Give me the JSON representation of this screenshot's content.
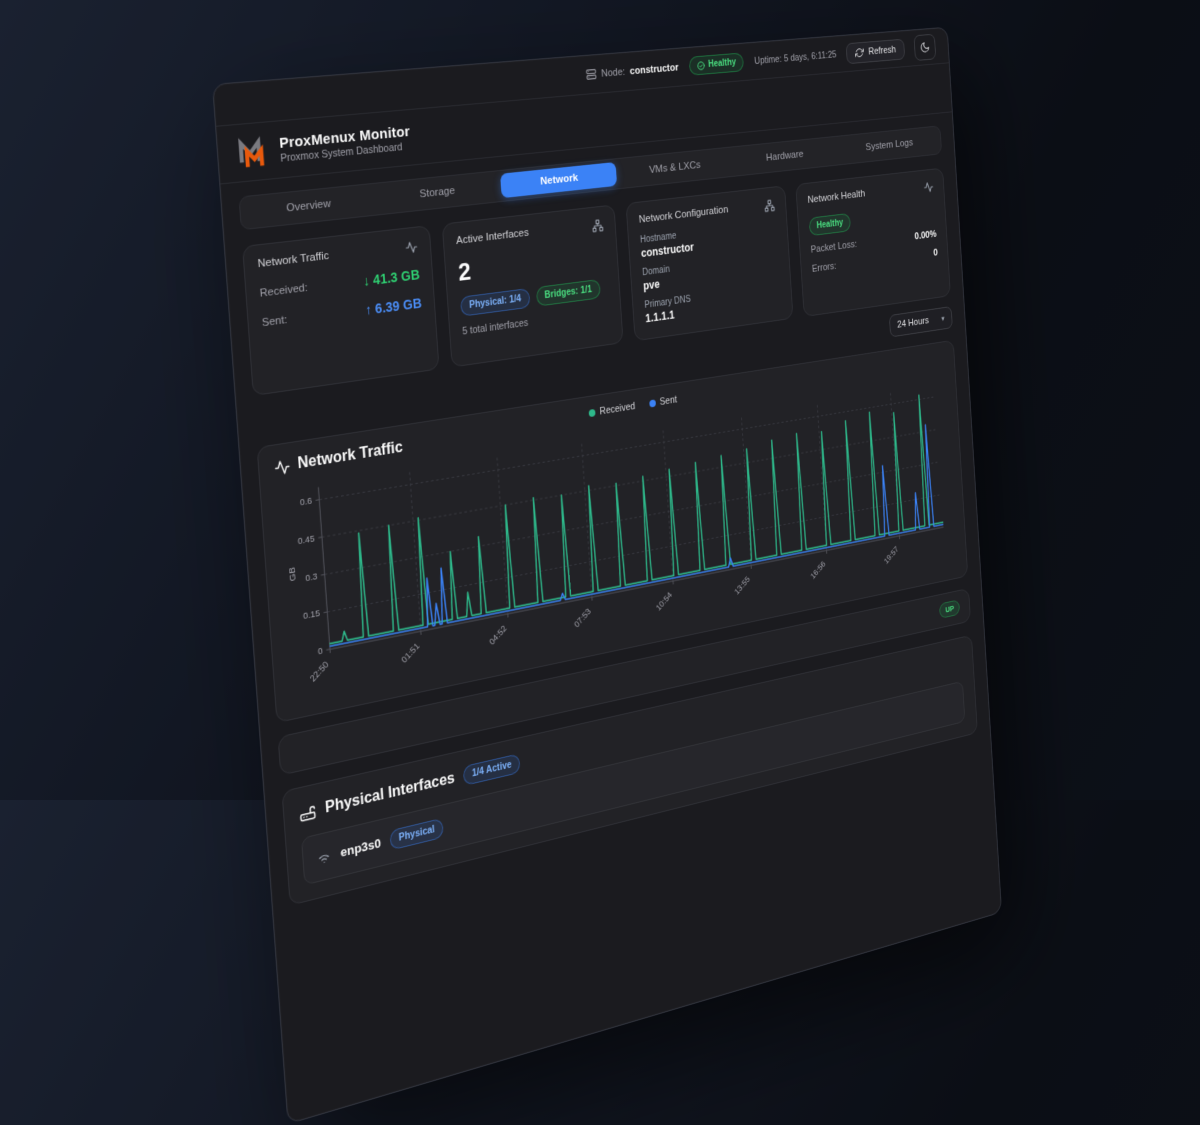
{
  "topbar": {
    "node_label": "Node:",
    "node_value": "constructor",
    "health_badge": "Healthy",
    "uptime": "Uptime: 5 days, 6:11:25",
    "refresh_label": "Refresh",
    "chevron": "▾"
  },
  "brand": {
    "title": "ProxMenux Monitor",
    "subtitle": "Proxmox System Dashboard"
  },
  "tabs": [
    {
      "label": "Overview",
      "active": false
    },
    {
      "label": "Storage",
      "active": false
    },
    {
      "label": "Network",
      "active": true
    },
    {
      "label": "VMs & LXCs",
      "active": false
    },
    {
      "label": "Hardware",
      "active": false
    },
    {
      "label": "System Logs",
      "active": false
    }
  ],
  "cards": {
    "traffic": {
      "title": "Network Traffic",
      "rows": [
        {
          "label": "Received:",
          "value": "↓ 41.3 GB",
          "color": "green"
        },
        {
          "label": "Sent:",
          "value": "↑ 6.39 GB",
          "color": "blue"
        }
      ]
    },
    "interfaces": {
      "title": "Active Interfaces",
      "count": "2",
      "badges": [
        {
          "label": "Physical: 1/4",
          "color": "blue"
        },
        {
          "label": "Bridges: 1/1",
          "color": "green"
        }
      ],
      "caption": "5 total interfaces"
    },
    "config": {
      "title": "Network Configuration",
      "fields": [
        {
          "label": "Hostname",
          "value": "constructor"
        },
        {
          "label": "Domain",
          "value": "pve"
        },
        {
          "label": "Primary DNS",
          "value": "1.1.1.1"
        }
      ]
    },
    "health": {
      "title": "Network Health",
      "badge": "Healthy",
      "rows": [
        {
          "label": "Packet Loss:",
          "value": "0.00%"
        },
        {
          "label": "Errors:",
          "value": "0"
        }
      ]
    }
  },
  "range_select": {
    "value": "24 Hours"
  },
  "chart_data": {
    "type": "line",
    "title": "Network Traffic",
    "ylabel": "GB",
    "ylim": [
      0,
      0.65
    ],
    "yticks": [
      0,
      0.15,
      0.3,
      0.45,
      0.6
    ],
    "xlim": [
      0,
      23
    ],
    "xtick_labels": [
      "22:50",
      "01:51",
      "04:52",
      "07:53",
      "10:54",
      "13:55",
      "16:56",
      "19:57"
    ],
    "xtick_pos": [
      0,
      3.02,
      6.03,
      9.05,
      12.07,
      15.08,
      18.1,
      21.12
    ],
    "grid": "dashed",
    "legend_position": "top-center",
    "series": [
      {
        "name": "Received",
        "color": "#2eb88a",
        "baseline_gb": 0.022,
        "spikes": [
          [
            0.5,
            0.06
          ],
          [
            1.2,
            0.44
          ],
          [
            2.2,
            0.45
          ],
          [
            3.2,
            0.46
          ],
          [
            4.2,
            0.3
          ],
          [
            4.7,
            0.12
          ],
          [
            5.2,
            0.34
          ],
          [
            6.2,
            0.45
          ],
          [
            7.2,
            0.46
          ],
          [
            8.2,
            0.45
          ],
          [
            9.2,
            0.47
          ],
          [
            10.2,
            0.46
          ],
          [
            11.2,
            0.47
          ],
          [
            12.2,
            0.48
          ],
          [
            13.2,
            0.49
          ],
          [
            14.2,
            0.5
          ],
          [
            15.2,
            0.51
          ],
          [
            16.2,
            0.53
          ],
          [
            17.2,
            0.54
          ],
          [
            18.2,
            0.53
          ],
          [
            19.2,
            0.56
          ],
          [
            20.2,
            0.58
          ],
          [
            21.2,
            0.56
          ],
          [
            22.3,
            0.62
          ]
        ]
      },
      {
        "name": "Sent",
        "color": "#3b82f6",
        "baseline_gb": 0.012,
        "spikes": [
          [
            3.35,
            0.21
          ],
          [
            3.6,
            0.1
          ],
          [
            3.85,
            0.24
          ],
          [
            8.0,
            0.04
          ],
          [
            14.3,
            0.05
          ],
          [
            20.6,
            0.33
          ],
          [
            21.9,
            0.18
          ],
          [
            22.5,
            0.48
          ]
        ]
      }
    ]
  },
  "status_strip": {
    "badge": "UP"
  },
  "physical": {
    "title": "Physical Interfaces",
    "badge": "1/4 Active",
    "rows": [
      {
        "name": "enp3s0",
        "badge": "Physical"
      }
    ]
  },
  "colors": {
    "accent_blue": "#3b82f6",
    "green": "#22c55e",
    "received_line": "#2eb88a",
    "sent_line": "#3b82f6",
    "logo_orange": "#e8590c",
    "logo_gray": "#7a7a80"
  }
}
